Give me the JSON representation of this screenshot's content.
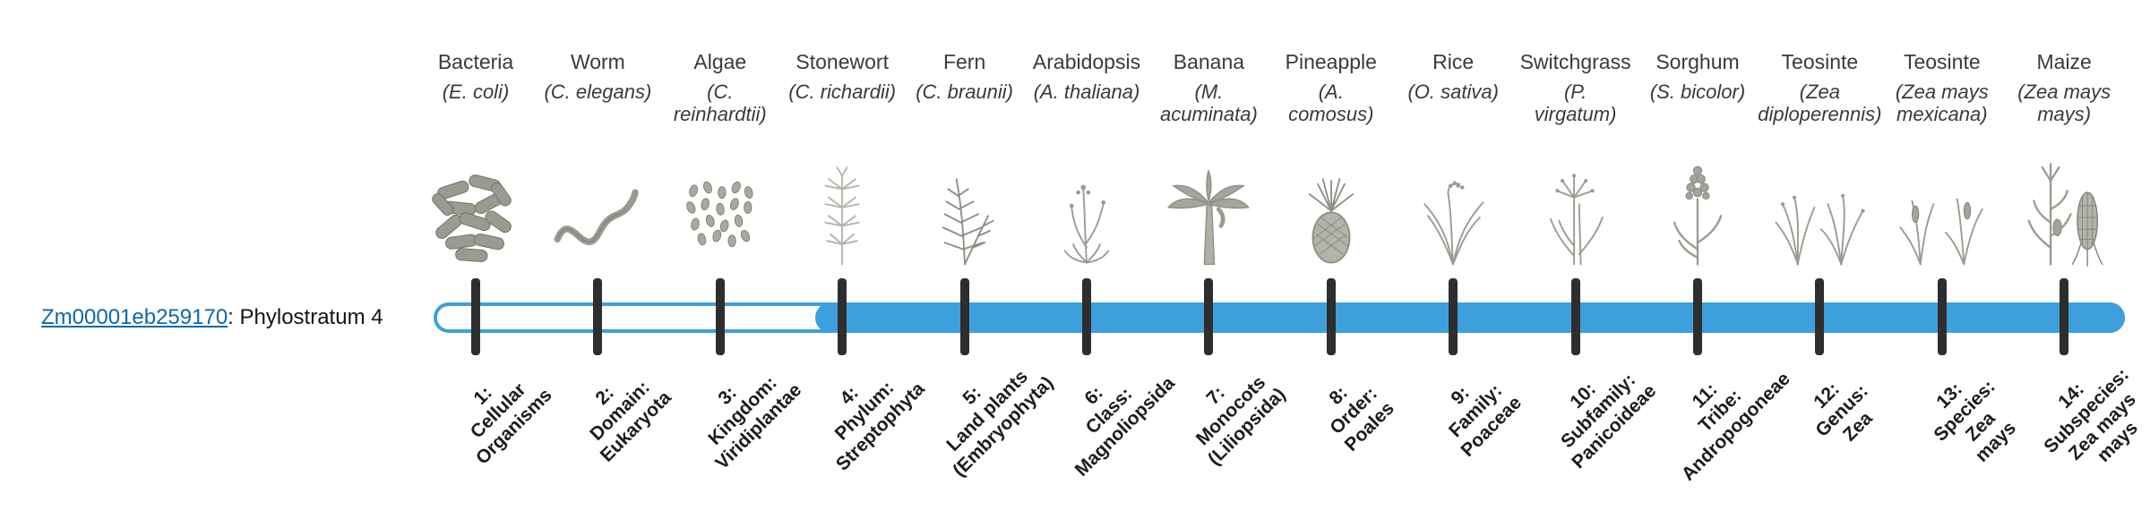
{
  "gene": {
    "link_text": "Zm00001eb259170",
    "label_suffix": ": Phylostratum 4",
    "link_color": "#0f67a9"
  },
  "track": {
    "bar_color": "#3da0dc",
    "tick_color": "#2e2e2e",
    "filled_from_stratum": 4,
    "total_strata": 14
  },
  "organisms": [
    {
      "name": "Bacteria",
      "sci": "(E. coli)",
      "icon": "bacteria-icon",
      "stratum": "1:\nCellular\nOrganisms"
    },
    {
      "name": "Worm",
      "sci": "(C. elegans)",
      "icon": "worm-icon",
      "stratum": "2:\nDomain:\nEukaryota"
    },
    {
      "name": "Algae",
      "sci": "(C.\nreinhardtii)",
      "icon": "algae-icon",
      "stratum": "3:\nKingdom:\nViridiplantae"
    },
    {
      "name": "Stonewort",
      "sci": "(C. richardii)",
      "icon": "stonewort-icon",
      "stratum": "4:\nPhylum:\nStreptophyta"
    },
    {
      "name": "Fern",
      "sci": "(C. braunii)",
      "icon": "fern-icon",
      "stratum": "5:\nLand plants\n(Embryophyta)"
    },
    {
      "name": "Arabidopsis",
      "sci": "(A. thaliana)",
      "icon": "arabidopsis-icon",
      "stratum": "6:\nClass:\nMagnoliopsida"
    },
    {
      "name": "Banana",
      "sci": "(M.\nacuminata)",
      "icon": "banana-tree-icon",
      "stratum": "7:\nMonocots\n(Liliopsida)"
    },
    {
      "name": "Pineapple",
      "sci": "(A.\ncomosus)",
      "icon": "pineapple-icon",
      "stratum": "8:\nOrder:\nPoales"
    },
    {
      "name": "Rice",
      "sci": "(O. sativa)",
      "icon": "rice-icon",
      "stratum": "9:\nFamily:\nPoaceae"
    },
    {
      "name": "Switchgrass",
      "sci": "(P.\nvirgatum)",
      "icon": "switchgrass-icon",
      "stratum": "10:\nSubfamily:\nPanicoideae"
    },
    {
      "name": "Sorghum",
      "sci": "(S. bicolor)",
      "icon": "sorghum-icon",
      "stratum": "11:\nTribe:\nAndropogoneae"
    },
    {
      "name": "Teosinte",
      "sci": "(Zea\ndiploperennis)",
      "icon": "teosinte-diploperennis-icon",
      "stratum": "12:\nGenus:\nZea"
    },
    {
      "name": "Teosinte",
      "sci": "(Zea mays\nmexicana)",
      "icon": "teosinte-mexicana-icon",
      "stratum": "13:\nSpecies:\nZea\nmays"
    },
    {
      "name": "Maize",
      "sci": "(Zea mays\nmays)",
      "icon": "maize-icon",
      "stratum": "14:\nSubspecies:\nZea mays\nmays"
    }
  ]
}
